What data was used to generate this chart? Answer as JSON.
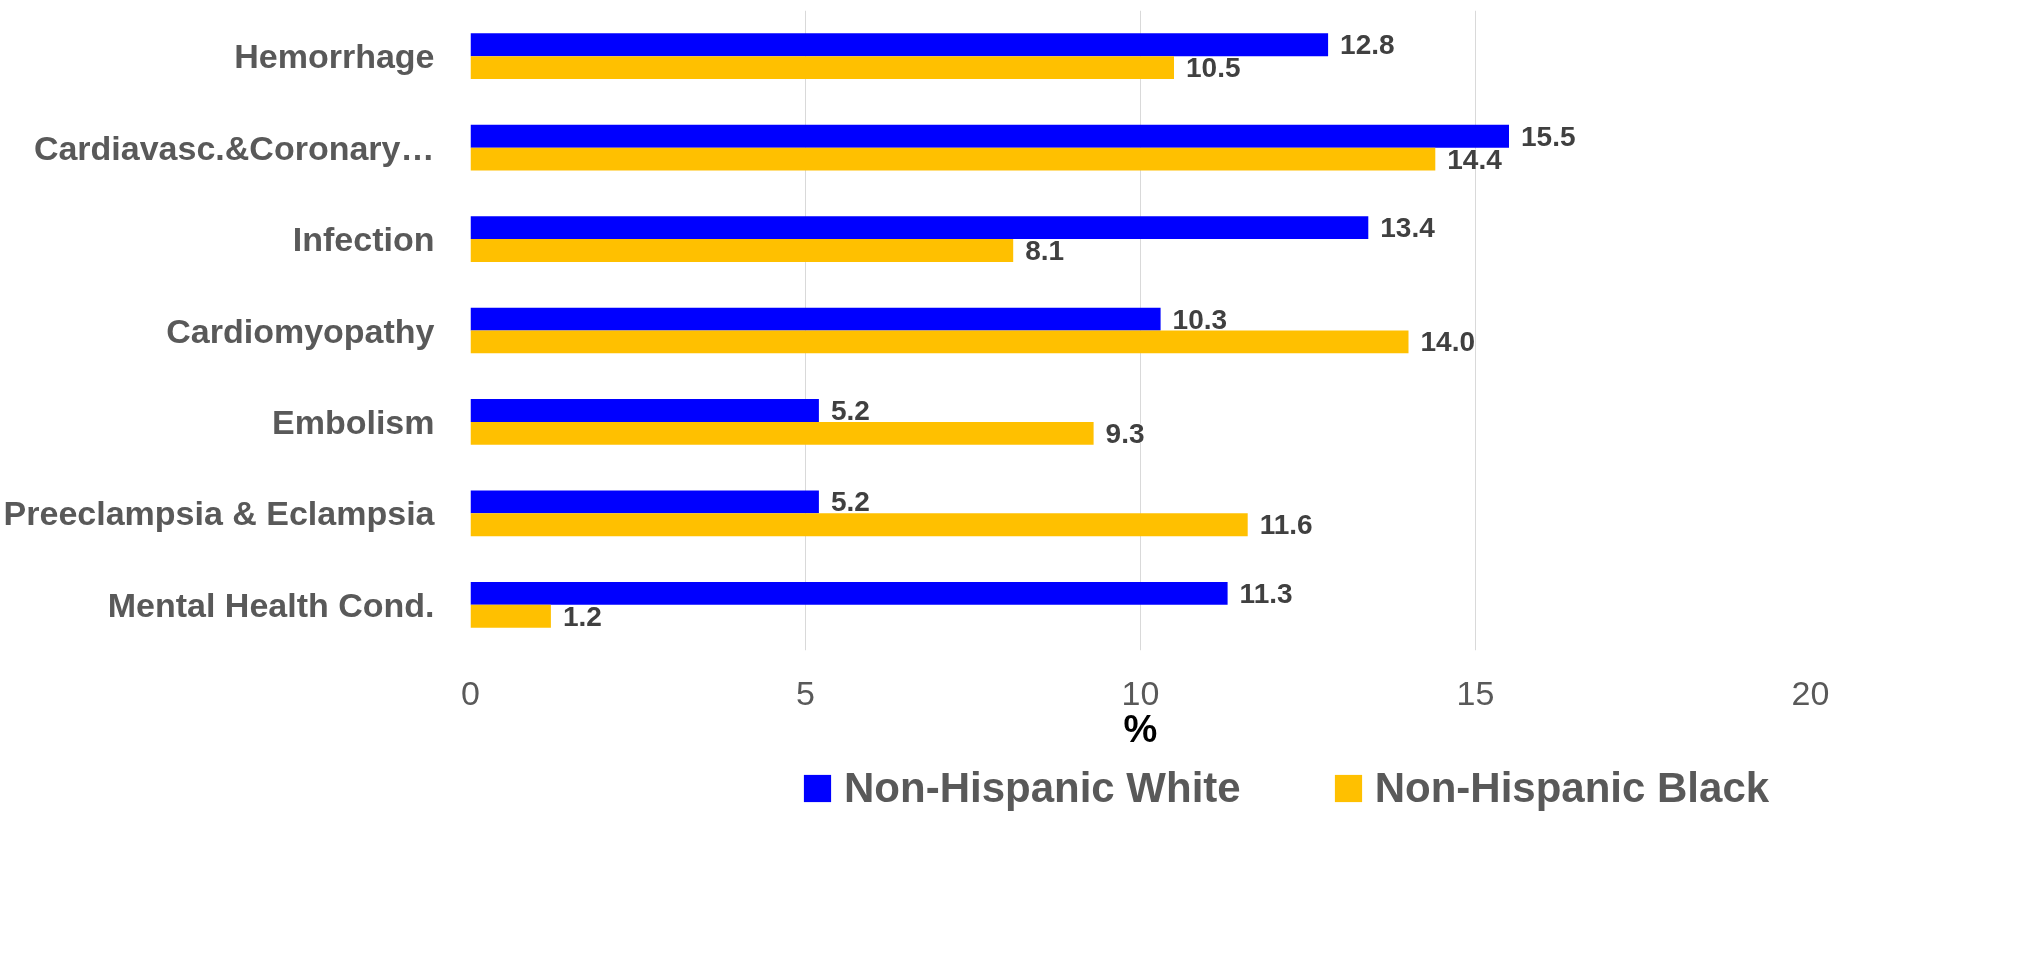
{
  "chart_data": {
    "type": "bar",
    "orientation": "horizontal",
    "xlabel": "%",
    "categories": [
      "Hemorrhage",
      "Cardiavasc.&Coronary…",
      "Infection",
      "Cardiomyopathy",
      "Embolism",
      "Preeclampsia & Eclampsia",
      "Mental Health Cond."
    ],
    "series": [
      {
        "name": "Non-Hispanic White",
        "color": "#0000ff",
        "values": [
          12.8,
          15.5,
          13.4,
          10.3,
          5.2,
          5.2,
          11.3
        ],
        "value_labels": [
          "12.8",
          "15.5",
          "13.4",
          "10.3",
          "5.2",
          "5.2",
          "11.3"
        ]
      },
      {
        "name": "Non-Hispanic Black",
        "color": "#ffc000",
        "values": [
          10.5,
          14.4,
          8.1,
          14.0,
          9.3,
          11.6,
          1.2
        ],
        "value_labels": [
          "10.5",
          "14.4",
          "8.1",
          "14.0",
          "9.3",
          "11.6",
          "1.2"
        ]
      }
    ],
    "xlim": [
      0,
      20
    ],
    "xticks": [
      0,
      5,
      10,
      15,
      20
    ],
    "grid": "x",
    "legend": "bottom"
  }
}
